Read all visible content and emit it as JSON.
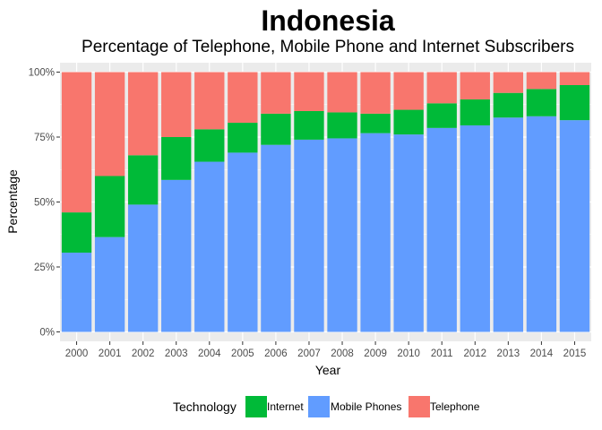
{
  "chart_data": {
    "type": "bar",
    "stacked": true,
    "title": "Indonesia",
    "subtitle": "Percentage of Telephone, Mobile Phone and Internet Subscribers",
    "xlabel": "Year",
    "ylabel": "Percentage",
    "ylim": [
      0,
      100
    ],
    "yticks": [
      "0%",
      "25%",
      "50%",
      "75%",
      "100%"
    ],
    "categories": [
      "2000",
      "2001",
      "2002",
      "2003",
      "2004",
      "2005",
      "2006",
      "2007",
      "2008",
      "2009",
      "2010",
      "2011",
      "2012",
      "2013",
      "2014",
      "2015"
    ],
    "series": [
      {
        "name": "Mobile Phones",
        "color": "#619CFF",
        "values": [
          30.5,
          36.5,
          49,
          58.5,
          65.5,
          69,
          72,
          74,
          74.5,
          76.5,
          76,
          78.5,
          79.5,
          82.5,
          83,
          81.5
        ]
      },
      {
        "name": "Internet",
        "color": "#00BA38",
        "values": [
          15.5,
          23.5,
          19,
          16.5,
          12.5,
          11.5,
          12,
          11,
          10,
          7.5,
          9.5,
          9.5,
          10,
          9.5,
          10.5,
          13.5
        ]
      },
      {
        "name": "Telephone",
        "color": "#F8766D",
        "values": [
          54,
          40,
          32,
          25,
          22,
          19.5,
          16,
          15,
          15.5,
          16,
          14.5,
          12,
          10.5,
          8,
          6.5,
          5
        ]
      }
    ],
    "grid": true,
    "legend": {
      "title": "Technology",
      "position": "bottom",
      "order": [
        "Internet",
        "Mobile Phones",
        "Telephone"
      ]
    },
    "panel_background": "#EBEBEB",
    "gridline_color": "#FFFFFF"
  }
}
